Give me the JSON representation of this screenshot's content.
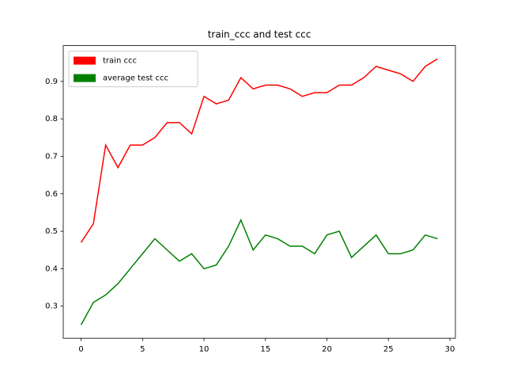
{
  "chart_data": {
    "type": "line",
    "title": "train_ccc and test ccc",
    "x": [
      0,
      1,
      2,
      3,
      4,
      5,
      6,
      7,
      8,
      9,
      10,
      11,
      12,
      13,
      14,
      15,
      16,
      17,
      18,
      19,
      20,
      21,
      22,
      23,
      24,
      25,
      26,
      27,
      28,
      29
    ],
    "series": [
      {
        "name": "train ccc",
        "color": "#ff0000",
        "values": [
          0.47,
          0.52,
          0.73,
          0.67,
          0.73,
          0.73,
          0.75,
          0.79,
          0.79,
          0.76,
          0.86,
          0.84,
          0.85,
          0.91,
          0.88,
          0.89,
          0.89,
          0.88,
          0.86,
          0.87,
          0.87,
          0.89,
          0.89,
          0.91,
          0.94,
          0.93,
          0.92,
          0.9,
          0.94,
          0.96
        ]
      },
      {
        "name": "average test ccc",
        "color": "#008000",
        "values": [
          0.25,
          0.31,
          0.33,
          0.36,
          0.4,
          0.44,
          0.48,
          0.45,
          0.42,
          0.44,
          0.4,
          0.41,
          0.46,
          0.53,
          0.45,
          0.49,
          0.48,
          0.46,
          0.46,
          0.44,
          0.49,
          0.5,
          0.43,
          0.46,
          0.49,
          0.44,
          0.44,
          0.45,
          0.49,
          0.48
        ]
      }
    ],
    "xlim": [
      -1.45,
      30.45
    ],
    "xticks": [
      0,
      5,
      10,
      15,
      20,
      25,
      30
    ],
    "ylim": [
      0.2145,
      0.9955
    ],
    "yticks": [
      0.3,
      0.4,
      0.5,
      0.6,
      0.7,
      0.8,
      0.9
    ],
    "legend": "upper left"
  }
}
